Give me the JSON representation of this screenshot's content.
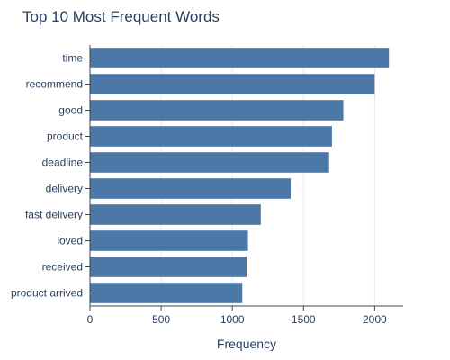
{
  "chart_data": {
    "type": "bar",
    "orientation": "horizontal",
    "title": "Top 10 Most Frequent Words",
    "xlabel": "Frequency",
    "ylabel": "",
    "categories": [
      "time",
      "recommend",
      "good",
      "product",
      "deadline",
      "delivery",
      "fast delivery",
      "loved",
      "received",
      "product arrived"
    ],
    "values": [
      2100,
      2000,
      1780,
      1700,
      1680,
      1410,
      1200,
      1110,
      1100,
      1070
    ],
    "xlim": [
      0,
      2200
    ],
    "xticks": [
      0,
      500,
      1000,
      1500,
      2000
    ],
    "grid": true,
    "legend": "none",
    "colors": {
      "bar": "#4c78a8",
      "grid": "#e8e8e8",
      "axis": "#2a3f5f"
    }
  }
}
